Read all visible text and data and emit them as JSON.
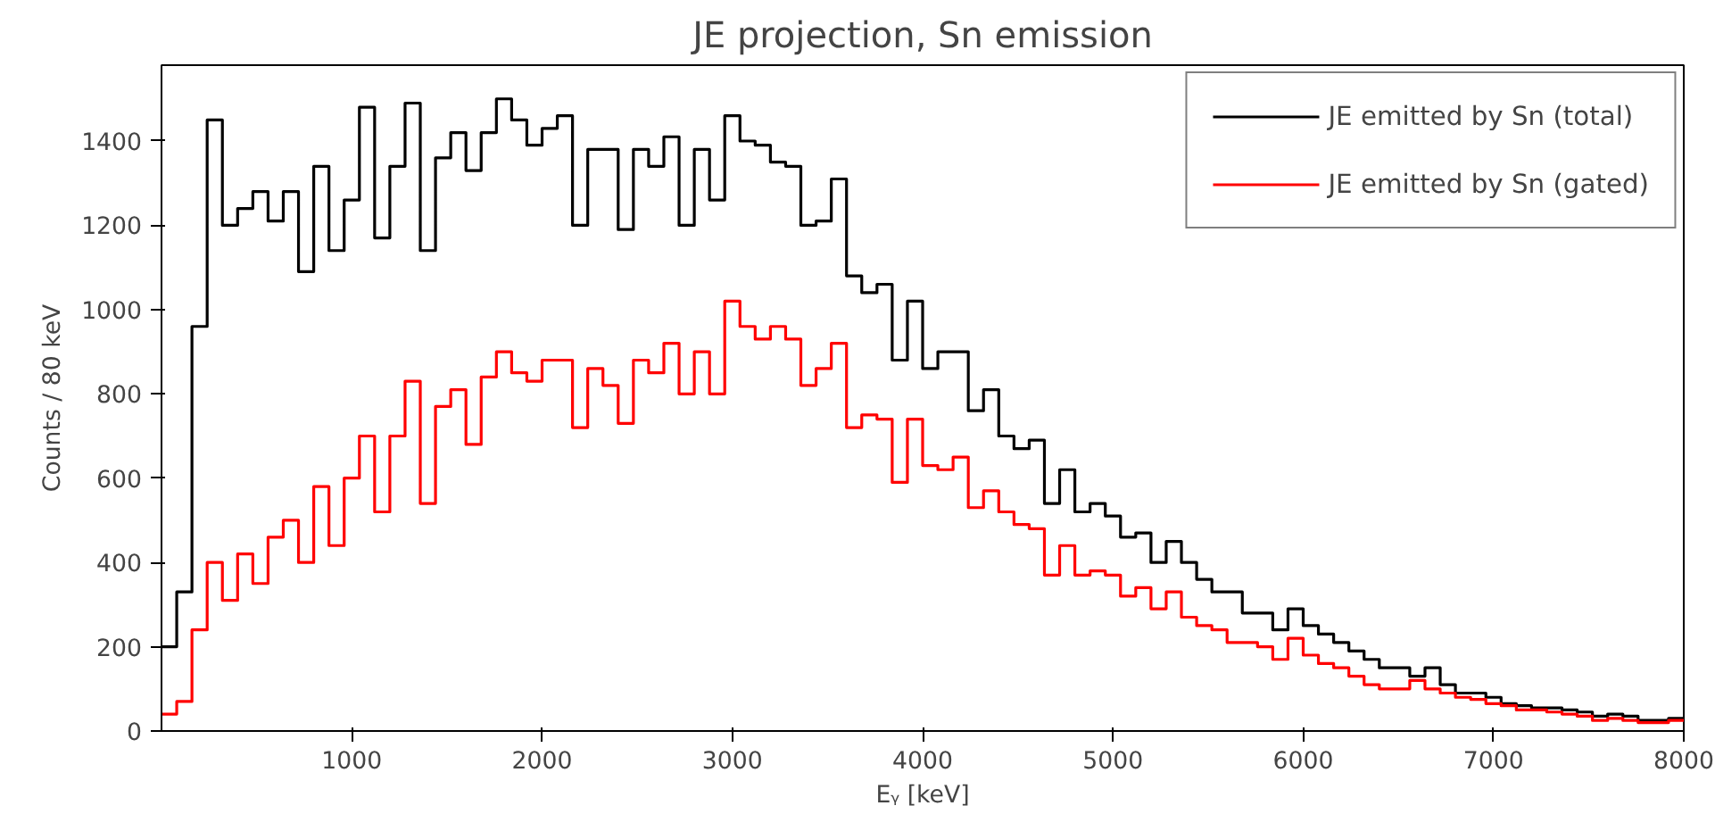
{
  "chart_data": {
    "type": "histogram",
    "title": "JE projection, Sn emission",
    "xlabel": "Eᵧ [keV]",
    "ylabel": "Counts / 80 keV",
    "bins": [
      0,
      80,
      160,
      240,
      320,
      400,
      480,
      560,
      640,
      720,
      800,
      880,
      960,
      1040,
      1120,
      1200,
      1280,
      1360,
      1440,
      1520,
      1600,
      1680,
      1760,
      1840,
      1920,
      2000,
      2080,
      2160,
      2240,
      2320,
      2400,
      2480,
      2560,
      2640,
      2720,
      2800,
      2880,
      2960,
      3040,
      3120,
      3200,
      3280,
      3360,
      3440,
      3520,
      3600,
      3680,
      3760,
      3840,
      3920,
      4000,
      4080,
      4160,
      4240,
      4320,
      4400,
      4480,
      4560,
      4640,
      4720,
      4800,
      4880,
      4960,
      5040,
      5120,
      5200,
      5280,
      5360,
      5440,
      5520,
      5600,
      5680,
      5760,
      5840,
      5920,
      6000,
      6080,
      6160,
      6240,
      6320,
      6400,
      6480,
      6560,
      6640,
      6720,
      6800,
      6880,
      6960,
      7040,
      7120,
      7200,
      7280,
      7360,
      7440,
      7520,
      7600,
      7680,
      7760,
      7840,
      7920,
      8000
    ],
    "series": [
      {
        "name": "JE emitted by Sn (total)",
        "color": "#000000",
        "values": [
          200,
          330,
          960,
          1450,
          1200,
          1240,
          1280,
          1210,
          1280,
          1090,
          1340,
          1140,
          1260,
          1480,
          1170,
          1340,
          1490,
          1140,
          1360,
          1420,
          1330,
          1420,
          1500,
          1450,
          1390,
          1430,
          1460,
          1200,
          1380,
          1380,
          1190,
          1380,
          1340,
          1410,
          1200,
          1380,
          1260,
          1460,
          1400,
          1390,
          1350,
          1340,
          1200,
          1210,
          1310,
          1080,
          1040,
          1060,
          880,
          1020,
          860,
          900,
          900,
          760,
          810,
          700,
          670,
          690,
          540,
          620,
          520,
          540,
          510,
          460,
          470,
          400,
          450,
          400,
          360,
          330,
          330,
          280,
          280,
          240,
          290,
          250,
          230,
          210,
          190,
          170,
          150,
          150,
          130,
          150,
          110,
          90,
          90,
          80,
          65,
          60,
          55,
          55,
          50,
          45,
          35,
          40,
          35,
          25,
          25,
          30
        ]
      },
      {
        "name": "JE emitted by Sn (gated)",
        "color": "#ff0000",
        "values": [
          40,
          70,
          240,
          400,
          310,
          420,
          350,
          460,
          500,
          400,
          580,
          440,
          600,
          700,
          520,
          700,
          830,
          540,
          770,
          810,
          680,
          840,
          900,
          850,
          830,
          880,
          880,
          720,
          860,
          820,
          730,
          880,
          850,
          920,
          800,
          900,
          800,
          1020,
          960,
          930,
          960,
          930,
          820,
          860,
          920,
          720,
          750,
          740,
          590,
          740,
          630,
          620,
          650,
          530,
          570,
          520,
          490,
          480,
          370,
          440,
          370,
          380,
          370,
          320,
          340,
          290,
          330,
          270,
          250,
          240,
          210,
          210,
          200,
          170,
          220,
          180,
          160,
          150,
          130,
          110,
          100,
          100,
          120,
          100,
          90,
          80,
          75,
          65,
          60,
          50,
          50,
          45,
          40,
          35,
          25,
          30,
          25,
          20,
          20,
          25
        ]
      }
    ],
    "xlim": [
      0,
      8000
    ],
    "ylim": [
      0,
      1580
    ],
    "xticks": [
      1000,
      2000,
      3000,
      4000,
      5000,
      6000,
      7000,
      8000
    ],
    "yticks": [
      0,
      200,
      400,
      600,
      800,
      1000,
      1200,
      1400
    ],
    "grid": false,
    "legend": "top right"
  }
}
